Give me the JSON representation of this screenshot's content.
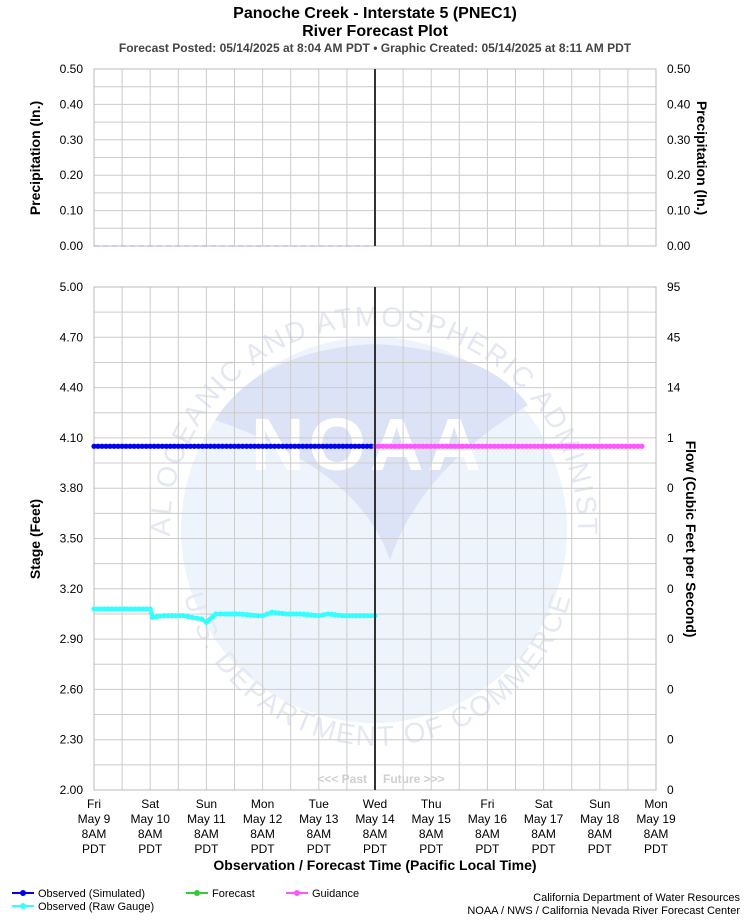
{
  "title": "Panoche Creek - Interstate 5 (PNEC1)",
  "subtitle": "River Forecast Plot",
  "posted_line": "Forecast Posted: 05/14/2025 at 8:04 AM PDT  •  Graphic Created: 05/14/2025 at 8:11 AM PDT",
  "colors": {
    "observed_simulated": "#0000ee",
    "observed_raw": "#33ffff",
    "forecast": "#33cc33",
    "guidance": "#ff55ff",
    "grid": "#cccccc",
    "now_line": "#333333",
    "watermark": "#e8eefa"
  },
  "watermark": {
    "outer_text_top": "NATIONAL OCEANIC AND ATMOSPHERIC ADMINISTRATION",
    "outer_text_bottom": "U.S. DEPARTMENT OF COMMERCE",
    "center_text": "NOAA"
  },
  "past_future": {
    "past": "<<< Past",
    "future": "Future >>>"
  },
  "xlabel": "Observation / Forecast Time (Pacific Local Time)",
  "x_ticks": [
    [
      "Fri",
      "May 9",
      "8AM",
      "PDT"
    ],
    [
      "Sat",
      "May 10",
      "8AM",
      "PDT"
    ],
    [
      "Sun",
      "May 11",
      "8AM",
      "PDT"
    ],
    [
      "Mon",
      "May 12",
      "8AM",
      "PDT"
    ],
    [
      "Tue",
      "May 13",
      "8AM",
      "PDT"
    ],
    [
      "Wed",
      "May 14",
      "8AM",
      "PDT"
    ],
    [
      "Thu",
      "May 15",
      "8AM",
      "PDT"
    ],
    [
      "Fri",
      "May 16",
      "8AM",
      "PDT"
    ],
    [
      "Sat",
      "May 17",
      "8AM",
      "PDT"
    ],
    [
      "Sun",
      "May 18",
      "8AM",
      "PDT"
    ],
    [
      "Mon",
      "May 19",
      "8AM",
      "PDT"
    ]
  ],
  "legend": [
    {
      "label": "Observed (Simulated)",
      "color_key": "observed_simulated"
    },
    {
      "label": "Forecast",
      "color_key": "forecast"
    },
    {
      "label": "Guidance",
      "color_key": "guidance"
    },
    {
      "label": "Observed (Raw Gauge)",
      "color_key": "observed_raw"
    }
  ],
  "credits": [
    "California Department of Water Resources",
    "NOAA / NWS / California Nevada River Forecast Center"
  ],
  "chart_data": [
    {
      "type": "line",
      "panel": "precipitation",
      "ylabel_left": "Precipitation (In.)",
      "ylabel_right": "Precipitation (In.)",
      "ylim": [
        0,
        0.5
      ],
      "y_ticks": [
        "0.50",
        "0.40",
        "0.30",
        "0.20",
        "0.10",
        "0.00"
      ],
      "grid": true,
      "series": [
        {
          "name": "Observed (Simulated)",
          "x": [
            "2025-05-09 08:00",
            "2025-05-14 08:00"
          ],
          "values": [
            0.0,
            0.0
          ]
        }
      ]
    },
    {
      "type": "line",
      "panel": "stage",
      "ylabel_left": "Stage (Feet)",
      "ylabel_right": "Flow (Cubic Feet per Second)",
      "ylim": [
        2.0,
        5.0
      ],
      "y_ticks_left": [
        "5.00",
        "4.70",
        "4.40",
        "4.10",
        "3.80",
        "3.50",
        "3.20",
        "2.90",
        "2.60",
        "2.30",
        "2.00"
      ],
      "y_ticks_right": [
        "95",
        "45",
        "14",
        "1",
        "0",
        "0",
        "0",
        "0",
        "0",
        "0",
        "0"
      ],
      "grid": true,
      "now": "2025-05-14 08:00",
      "series": [
        {
          "name": "Observed (Simulated)",
          "x": [
            "2025-05-09 08:00",
            "2025-05-14 08:00"
          ],
          "values": [
            4.05,
            4.05
          ]
        },
        {
          "name": "Guidance",
          "x": [
            "2025-05-14 08:00",
            "2025-05-19 02:00"
          ],
          "values": [
            4.05,
            4.05
          ]
        },
        {
          "name": "Observed (Raw Gauge)",
          "x": [
            "2025-05-09 08:00",
            "2025-05-09 14:00",
            "2025-05-10 08:00",
            "2025-05-10 09:00",
            "2025-05-10 14:00",
            "2025-05-10 22:00",
            "2025-05-11 02:00",
            "2025-05-11 06:00",
            "2025-05-11 08:00",
            "2025-05-11 12:00",
            "2025-05-11 16:00",
            "2025-05-11 22:00",
            "2025-05-12 06:00",
            "2025-05-12 08:00",
            "2025-05-12 12:00",
            "2025-05-12 18:00",
            "2025-05-13 00:00",
            "2025-05-13 08:00",
            "2025-05-13 12:00",
            "2025-05-13 18:00",
            "2025-05-14 00:00",
            "2025-05-14 08:00"
          ],
          "values": [
            3.08,
            3.08,
            3.08,
            3.03,
            3.04,
            3.04,
            3.03,
            3.02,
            3.0,
            3.05,
            3.05,
            3.05,
            3.04,
            3.04,
            3.06,
            3.05,
            3.05,
            3.04,
            3.05,
            3.04,
            3.04,
            3.04
          ]
        }
      ]
    }
  ]
}
